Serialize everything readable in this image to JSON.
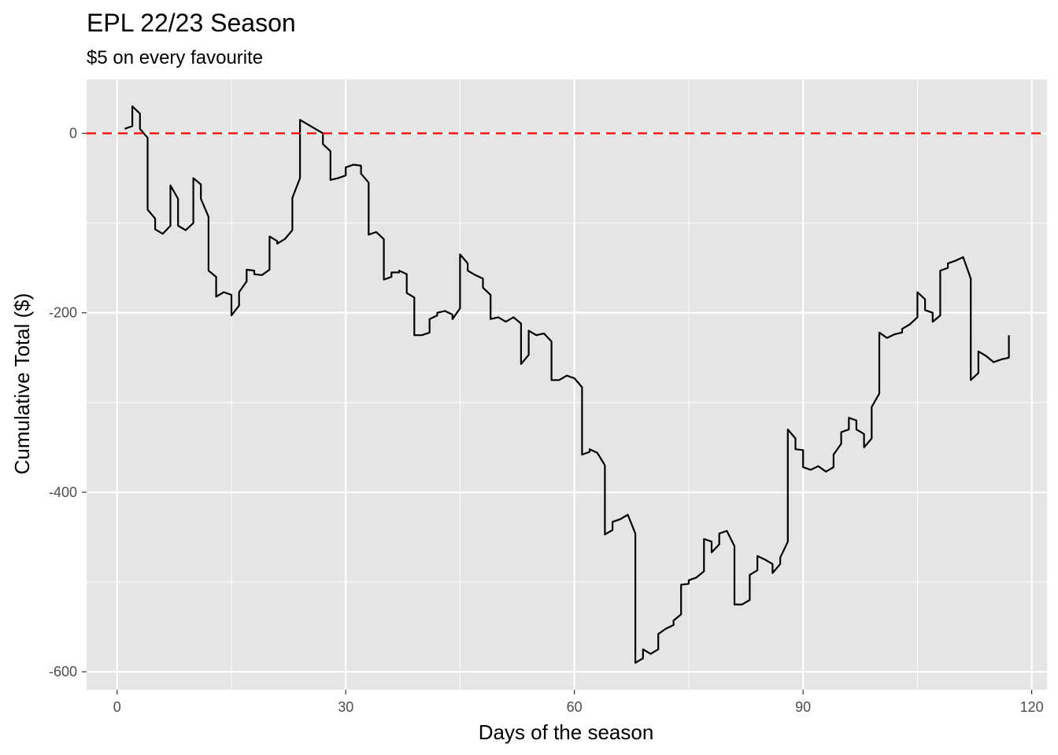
{
  "chart_data": {
    "type": "line",
    "title": "EPL 22/23 Season",
    "subtitle": "$5 on every favourite",
    "xlabel": "Days of the season",
    "ylabel": "Cumulative Total ($)",
    "xlim": [
      -4,
      122
    ],
    "ylim": [
      -620,
      60
    ],
    "x_ticks": [
      0,
      30,
      60,
      90,
      120
    ],
    "x_tick_labels": [
      "0",
      "30",
      "60",
      "90",
      "120"
    ],
    "y_ticks": [
      0,
      -200,
      -400,
      -600
    ],
    "y_tick_labels": [
      "0",
      "-200",
      "-400",
      "-600"
    ],
    "background_color": "#e5e5e5",
    "grid": true,
    "reference_line": {
      "y": 0,
      "color": "#ff0000",
      "style": "dashed"
    },
    "series": [
      {
        "color": "#000000",
        "points": [
          [
            1.0,
            5
          ],
          [
            2.0,
            8
          ],
          [
            2.0,
            30
          ],
          [
            3.0,
            22
          ],
          [
            3.0,
            5
          ],
          [
            4.0,
            -5
          ],
          [
            4.0,
            -85
          ],
          [
            5.0,
            -95
          ],
          [
            5.0,
            -107
          ],
          [
            6.0,
            -112
          ],
          [
            7.0,
            -103
          ],
          [
            7.0,
            -58
          ],
          [
            8.0,
            -73
          ],
          [
            8.0,
            -103
          ],
          [
            9.0,
            -108
          ],
          [
            10.0,
            -100
          ],
          [
            10.0,
            -50
          ],
          [
            11.0,
            -57
          ],
          [
            11.0,
            -73
          ],
          [
            12.0,
            -93
          ],
          [
            12.0,
            -153
          ],
          [
            13.0,
            -160
          ],
          [
            13.0,
            -182
          ],
          [
            14.0,
            -177
          ],
          [
            15.0,
            -180
          ],
          [
            15.0,
            -203
          ],
          [
            16.0,
            -192
          ],
          [
            16.0,
            -177
          ],
          [
            17.0,
            -165
          ],
          [
            17.0,
            -152
          ],
          [
            18.0,
            -153
          ],
          [
            18.0,
            -157
          ],
          [
            19.0,
            -158
          ],
          [
            20.0,
            -152
          ],
          [
            20.0,
            -115
          ],
          [
            21.0,
            -120
          ],
          [
            21.0,
            -123
          ],
          [
            22.0,
            -118
          ],
          [
            23.0,
            -108
          ],
          [
            23.0,
            -72
          ],
          [
            24.0,
            -50
          ],
          [
            24.0,
            15
          ],
          [
            26.0,
            5
          ],
          [
            27.0,
            0
          ],
          [
            27.0,
            -12
          ],
          [
            28.0,
            -20
          ],
          [
            28.0,
            -52
          ],
          [
            29.0,
            -50
          ],
          [
            30.0,
            -47
          ],
          [
            30.0,
            -38
          ],
          [
            31.0,
            -35
          ],
          [
            32.0,
            -36
          ],
          [
            32.0,
            -45
          ],
          [
            33.0,
            -55
          ],
          [
            33.0,
            -113
          ],
          [
            34.0,
            -110
          ],
          [
            35.0,
            -118
          ],
          [
            35.0,
            -163
          ],
          [
            36.0,
            -160
          ],
          [
            36.0,
            -155
          ],
          [
            37.0,
            -155
          ],
          [
            37.0,
            -153
          ],
          [
            38.0,
            -157
          ],
          [
            38.0,
            -178
          ],
          [
            39.0,
            -183
          ],
          [
            39.0,
            -225
          ],
          [
            40.0,
            -225
          ],
          [
            41.0,
            -222
          ],
          [
            41.0,
            -207
          ],
          [
            42.0,
            -203
          ],
          [
            42.0,
            -200
          ],
          [
            43.0,
            -198
          ],
          [
            44.0,
            -202
          ],
          [
            44.0,
            -207
          ],
          [
            45.0,
            -195
          ],
          [
            45.0,
            -135
          ],
          [
            46.0,
            -145
          ],
          [
            46.0,
            -153
          ],
          [
            47.0,
            -158
          ],
          [
            48.0,
            -162
          ],
          [
            48.0,
            -172
          ],
          [
            49.0,
            -180
          ],
          [
            49.0,
            -207
          ],
          [
            50.0,
            -205
          ],
          [
            51.0,
            -210
          ],
          [
            52.0,
            -205
          ],
          [
            53.0,
            -212
          ],
          [
            53.0,
            -257
          ],
          [
            54.0,
            -247
          ],
          [
            54.0,
            -220
          ],
          [
            55.0,
            -225
          ],
          [
            56.0,
            -223
          ],
          [
            57.0,
            -232
          ],
          [
            57.0,
            -275
          ],
          [
            58.0,
            -275
          ],
          [
            59.0,
            -270
          ],
          [
            60.0,
            -273
          ],
          [
            61.0,
            -283
          ],
          [
            61.0,
            -358
          ],
          [
            62.0,
            -355
          ],
          [
            62.0,
            -352
          ],
          [
            63.0,
            -356
          ],
          [
            64.0,
            -370
          ],
          [
            64.0,
            -447
          ],
          [
            65.0,
            -442
          ],
          [
            65.0,
            -433
          ],
          [
            66.0,
            -430
          ],
          [
            67.0,
            -425
          ],
          [
            68.0,
            -446
          ],
          [
            68.0,
            -590
          ],
          [
            69.0,
            -585
          ],
          [
            69.0,
            -575
          ],
          [
            70.0,
            -580
          ],
          [
            71.0,
            -575
          ],
          [
            71.0,
            -558
          ],
          [
            72.0,
            -552
          ],
          [
            73.0,
            -548
          ],
          [
            73.0,
            -543
          ],
          [
            74.0,
            -536
          ],
          [
            74.0,
            -503
          ],
          [
            75.0,
            -502
          ],
          [
            75.0,
            -498
          ],
          [
            76.0,
            -495
          ],
          [
            77.0,
            -488
          ],
          [
            77.0,
            -452
          ],
          [
            78.0,
            -455
          ],
          [
            78.0,
            -467
          ],
          [
            79.0,
            -458
          ],
          [
            79.0,
            -446
          ],
          [
            80.0,
            -443
          ],
          [
            81.0,
            -460
          ],
          [
            81.0,
            -525
          ],
          [
            82.0,
            -525
          ],
          [
            83.0,
            -520
          ],
          [
            83.0,
            -492
          ],
          [
            84.0,
            -487
          ],
          [
            84.0,
            -471
          ],
          [
            85.0,
            -475
          ],
          [
            86.0,
            -480
          ],
          [
            86.0,
            -490
          ],
          [
            87.0,
            -480
          ],
          [
            87.0,
            -473
          ],
          [
            88.0,
            -455
          ],
          [
            88.0,
            -330
          ],
          [
            89.0,
            -340
          ],
          [
            89.0,
            -352
          ],
          [
            90.0,
            -353
          ],
          [
            90.0,
            -372
          ],
          [
            91.0,
            -375
          ],
          [
            92.0,
            -371
          ],
          [
            93.0,
            -377
          ],
          [
            94.0,
            -372
          ],
          [
            94.0,
            -358
          ],
          [
            95.0,
            -346
          ],
          [
            95.0,
            -333
          ],
          [
            96.0,
            -330
          ],
          [
            96.0,
            -317
          ],
          [
            97.0,
            -320
          ],
          [
            97.0,
            -330
          ],
          [
            98.0,
            -335
          ],
          [
            98.0,
            -350
          ],
          [
            99.0,
            -340
          ],
          [
            99.0,
            -305
          ],
          [
            100.0,
            -290
          ],
          [
            100.0,
            -222
          ],
          [
            101.0,
            -228
          ],
          [
            102.0,
            -224
          ],
          [
            103.0,
            -222
          ],
          [
            103.0,
            -218
          ],
          [
            104.0,
            -213
          ],
          [
            105.0,
            -205
          ],
          [
            105.0,
            -177
          ],
          [
            106.0,
            -185
          ],
          [
            106.0,
            -197
          ],
          [
            107.0,
            -200
          ],
          [
            107.0,
            -210
          ],
          [
            108.0,
            -203
          ],
          [
            108.0,
            -153
          ],
          [
            109.0,
            -150
          ],
          [
            109.0,
            -145
          ],
          [
            110.0,
            -142
          ],
          [
            111.0,
            -138
          ],
          [
            112.0,
            -162
          ],
          [
            112.0,
            -275
          ],
          [
            113.0,
            -267
          ],
          [
            113.0,
            -243
          ],
          [
            114.0,
            -248
          ],
          [
            115.0,
            -255
          ],
          [
            116.0,
            -252
          ],
          [
            117.0,
            -250
          ],
          [
            117.0,
            -225
          ]
        ]
      }
    ]
  }
}
